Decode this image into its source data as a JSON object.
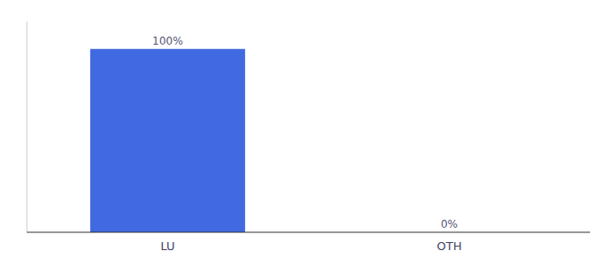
{
  "chart_data": {
    "type": "bar",
    "categories": [
      "LU",
      "OTH"
    ],
    "values": [
      100,
      0
    ],
    "value_labels": [
      "100%",
      "0%"
    ],
    "colors": [
      "#4169e1",
      "#4169e1"
    ],
    "ylim": [
      0,
      115
    ],
    "data_labels": true,
    "tick_labels": "x"
  }
}
